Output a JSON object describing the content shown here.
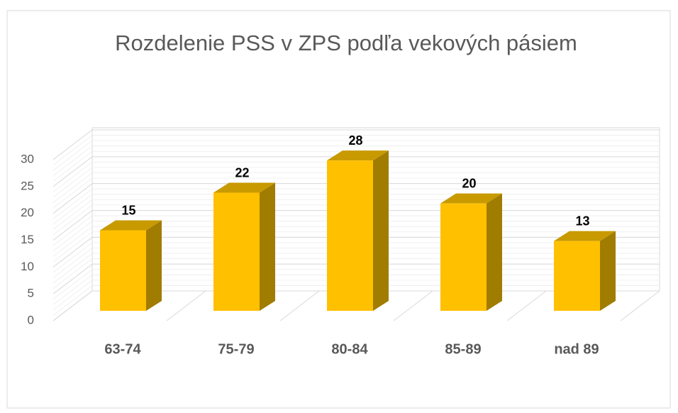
{
  "chart_data": {
    "type": "bar",
    "title": "Rozdelenie PSS v ZPS  podľa vekových pásiem",
    "categories": [
      "63-74",
      "75-79",
      "80-84",
      "85-89",
      "nad 89"
    ],
    "values": [
      15,
      22,
      28,
      20,
      13
    ],
    "color": "#ffc000",
    "ylim": [
      0,
      30
    ],
    "yticks": [
      0,
      5,
      10,
      15,
      20,
      25,
      30
    ],
    "grid": true
  }
}
